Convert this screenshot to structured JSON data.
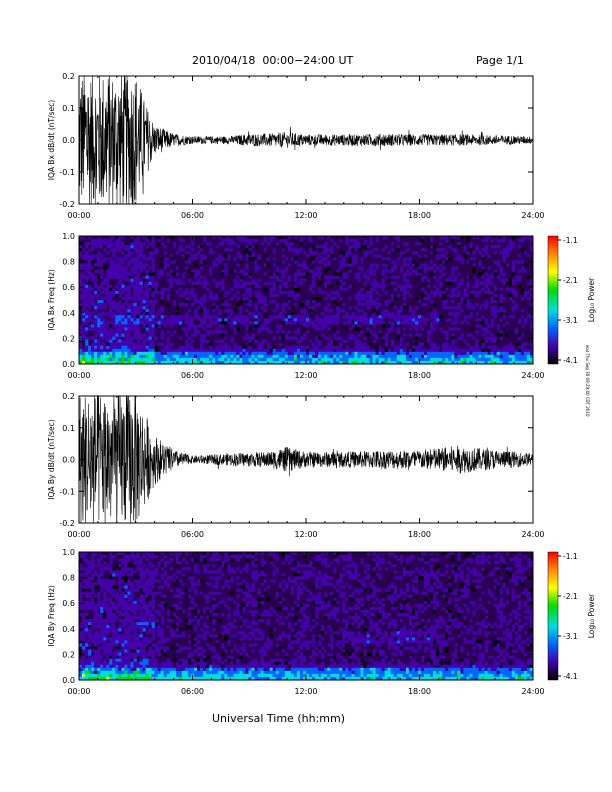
{
  "header": {
    "title": "2010/04/18  00:00−24:00 UT",
    "page": "Page 1/1"
  },
  "footer": {
    "xlabel": "Universal Time (hh:mm)"
  },
  "side_stamp": "wat Thu Sep 30 09:29:40 CDT 2010",
  "colors": {
    "trace": "#000000",
    "colorbar": [
      "#ff0000",
      "#ff8800",
      "#ffff00",
      "#00dd00",
      "#00dddd",
      "#0066ff",
      "#4400aa",
      "#000000"
    ]
  },
  "chart_data": [
    {
      "type": "line",
      "ylabel": "IQA Bx dB/dt (nT/sec)",
      "xlim": [
        "00:00",
        "24:00"
      ],
      "ylim": [
        -0.2,
        0.2
      ],
      "x_ticks": [
        "00:00",
        "06:00",
        "12:00",
        "18:00",
        "24:00"
      ],
      "y_ticks": [
        "0.2",
        "0.1",
        "0.0",
        "-0.1",
        "-0.2"
      ],
      "envelope_hours": [
        0,
        0.5,
        1,
        1.5,
        2,
        2.5,
        3,
        3.5,
        4,
        5,
        6,
        8,
        9,
        10,
        11,
        12,
        14,
        16,
        18,
        20,
        22,
        24
      ],
      "envelope_amplitude": [
        0.22,
        0.22,
        0.22,
        0.22,
        0.22,
        0.22,
        0.22,
        0.12,
        0.05,
        0.02,
        0.012,
        0.012,
        0.02,
        0.02,
        0.025,
        0.018,
        0.018,
        0.02,
        0.018,
        0.018,
        0.015,
        0.012
      ]
    },
    {
      "type": "heatmap",
      "ylabel": "IQA Bx Freq (Hz)",
      "xlim": [
        "00:00",
        "24:00"
      ],
      "ylim": [
        0.0,
        1.0
      ],
      "x_ticks": [
        "00:00",
        "06:00",
        "12:00",
        "18:00",
        "24:00"
      ],
      "y_ticks": [
        "1.0",
        "0.8",
        "0.6",
        "0.4",
        "0.2",
        "0.0"
      ],
      "colorbar": {
        "label": "Log₁₀ Power",
        "ticks": [
          "-1.1",
          "-2.1",
          "-3.1",
          "-4.1"
        ],
        "range": [
          -4.1,
          -1.1
        ]
      },
      "bands": [
        {
          "freq_hz": 0.35,
          "from_hour": 2,
          "to_hour": 19,
          "log10_power": -3.2
        },
        {
          "freq_hz": 0.05,
          "from_hour": 0,
          "to_hour": 24,
          "log10_power": -2.9
        }
      ]
    },
    {
      "type": "line",
      "ylabel": "IQA By dB/dt (nT/sec)",
      "xlim": [
        "00:00",
        "24:00"
      ],
      "ylim": [
        -0.2,
        0.2
      ],
      "x_ticks": [
        "00:00",
        "06:00",
        "12:00",
        "18:00",
        "24:00"
      ],
      "y_ticks": [
        "0.2",
        "0.1",
        "0.0",
        "-0.1",
        "-0.2"
      ],
      "envelope_hours": [
        0,
        0.5,
        1,
        1.5,
        2,
        2.5,
        3,
        3.5,
        4,
        5,
        6,
        8,
        10,
        11,
        12,
        14,
        16,
        18,
        20,
        22,
        24
      ],
      "envelope_amplitude": [
        0.22,
        0.22,
        0.22,
        0.22,
        0.22,
        0.22,
        0.22,
        0.15,
        0.08,
        0.03,
        0.012,
        0.02,
        0.025,
        0.04,
        0.025,
        0.025,
        0.03,
        0.03,
        0.045,
        0.03,
        0.02
      ]
    },
    {
      "type": "heatmap",
      "ylabel": "IQA By Freq (Hz)",
      "xlim": [
        "00:00",
        "24:00"
      ],
      "ylim": [
        0.0,
        1.0
      ],
      "x_ticks": [
        "00:00",
        "06:00",
        "12:00",
        "18:00",
        "24:00"
      ],
      "y_ticks": [
        "1.0",
        "0.8",
        "0.6",
        "0.4",
        "0.2",
        "0.0"
      ],
      "colorbar": {
        "label": "Log₁₀ Power",
        "ticks": [
          "-1.1",
          "-2.1",
          "-3.1",
          "-4.1"
        ],
        "range": [
          -4.1,
          -1.1
        ]
      },
      "bands": [
        {
          "freq_hz": 0.33,
          "from_hour": 14,
          "to_hour": 19,
          "log10_power": -3.2
        },
        {
          "freq_hz": 0.05,
          "from_hour": 0,
          "to_hour": 24,
          "log10_power": -2.9
        }
      ]
    }
  ]
}
